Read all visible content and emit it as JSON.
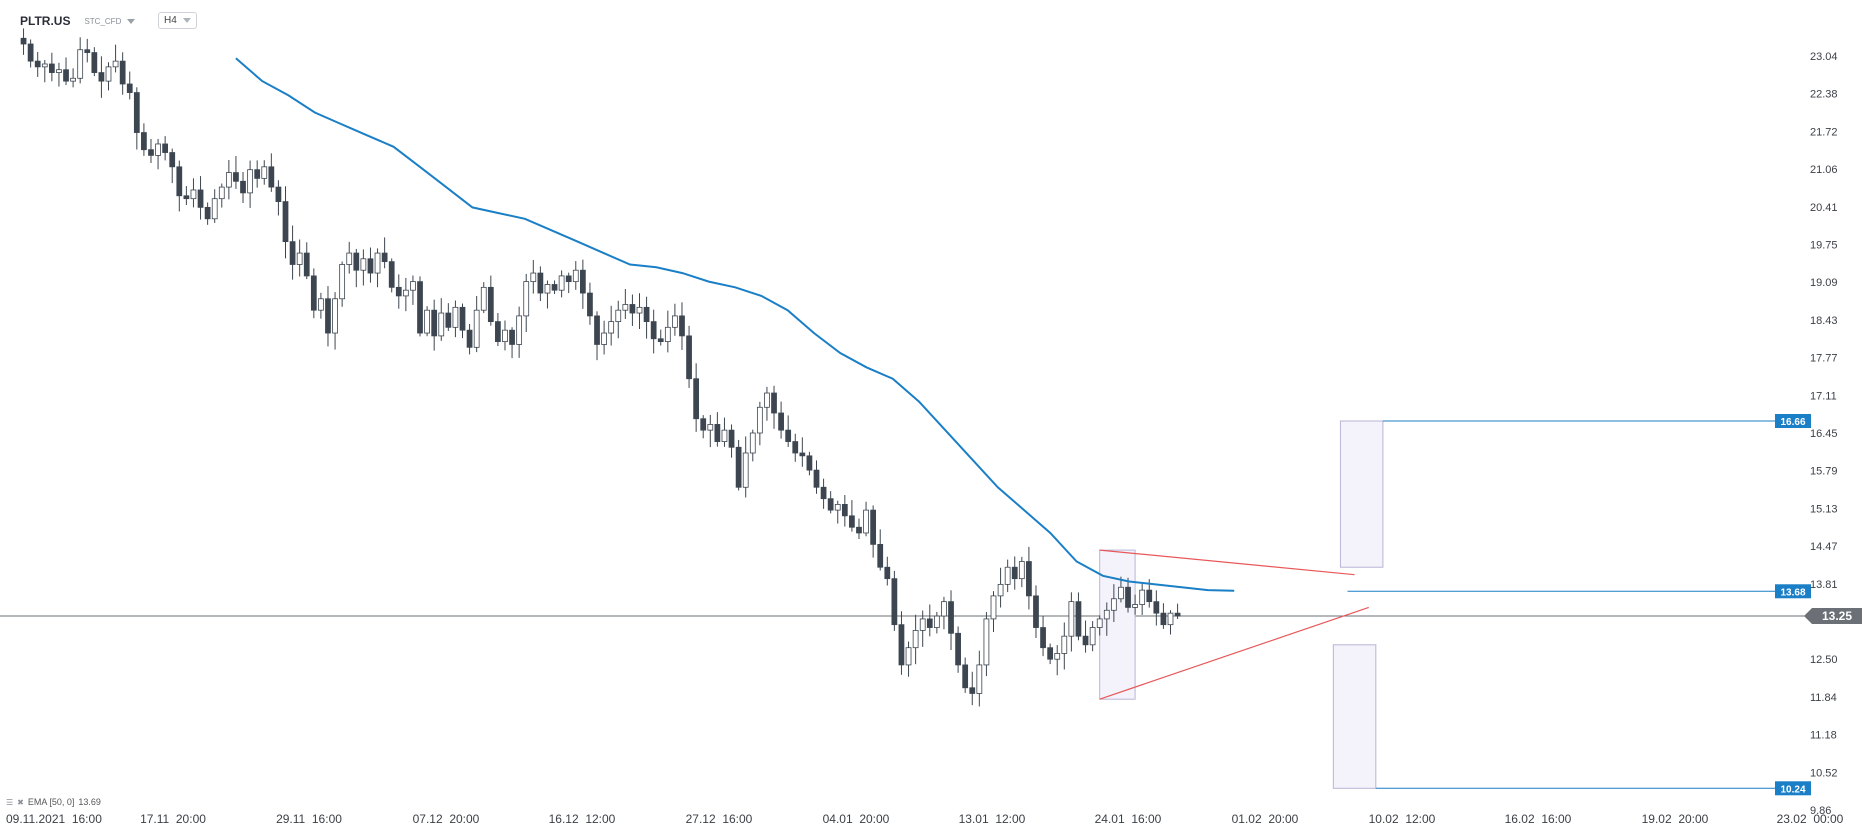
{
  "header": {
    "symbol": "PLTR.US",
    "instrument_type": "STC_CFD",
    "timeframe": "H4"
  },
  "indicator": {
    "legend": "EMA [50, 0]",
    "value": "13.69"
  },
  "colors": {
    "up_candle": "#ffffff",
    "down_candle": "#3d4650",
    "wick": "#3d4650",
    "ema": "#1a7fc6",
    "trendline": "#e8585a",
    "current_price": "#6b7077",
    "level_label": "#1a7fc6",
    "zone_fill": "#f4f3fb",
    "zone_border": "#b9b5d4"
  },
  "chart_data": {
    "type": "candlestick",
    "y_ticks": [
      "23.04",
      "22.38",
      "21.72",
      "21.06",
      "20.41",
      "19.75",
      "19.09",
      "18.43",
      "17.77",
      "17.11",
      "16.45",
      "15.79",
      "15.13",
      "14.47",
      "13.81",
      "12.50",
      "11.84",
      "11.18",
      "10.52",
      "9.86"
    ],
    "ylim": [
      9.86,
      23.4
    ],
    "x_ticks": [
      "09.11.2021  16:00",
      "17.11  20:00",
      "29.11  16:00",
      "07.12  20:00",
      "16.12  12:00",
      "27.12  16:00",
      "04.01  20:00",
      "13.01  12:00",
      "24.01  16:00",
      "01.02  20:00",
      "10.02  12:00",
      "16.02  16:00",
      "19.02  20:00",
      "23.02  00:00"
    ],
    "current_price": {
      "value": 13.25,
      "label": "13.25"
    },
    "levels": [
      {
        "value": 16.66,
        "label": "16.66"
      },
      {
        "value": 13.68,
        "label": "13.68"
      },
      {
        "value": 10.24,
        "label": "10.24"
      }
    ],
    "closes": [
      23.25,
      22.95,
      22.85,
      22.9,
      22.75,
      22.8,
      22.6,
      22.65,
      23.15,
      23.1,
      22.75,
      22.6,
      22.85,
      22.95,
      22.55,
      22.4,
      21.7,
      21.4,
      21.3,
      21.5,
      21.35,
      21.1,
      20.6,
      20.55,
      20.7,
      20.4,
      20.2,
      20.55,
      20.75,
      21.0,
      20.85,
      20.65,
      21.05,
      20.9,
      21.1,
      20.75,
      20.5,
      19.8,
      19.4,
      19.6,
      19.2,
      18.6,
      18.8,
      18.2,
      18.8,
      19.4,
      19.6,
      19.3,
      19.5,
      19.25,
      19.6,
      19.45,
      19.0,
      18.85,
      18.95,
      19.1,
      18.2,
      18.6,
      18.15,
      18.55,
      18.3,
      18.65,
      18.25,
      17.95,
      18.6,
      19.0,
      18.4,
      18.05,
      18.25,
      18.0,
      18.5,
      19.1,
      19.25,
      18.9,
      19.05,
      18.95,
      19.2,
      19.1,
      19.3,
      18.9,
      18.5,
      18.0,
      18.2,
      18.4,
      18.6,
      18.7,
      18.55,
      18.65,
      18.4,
      18.1,
      18.05,
      18.3,
      18.5,
      18.15,
      17.4,
      16.7,
      16.5,
      16.6,
      16.3,
      16.5,
      16.2,
      15.5,
      16.1,
      16.45,
      16.9,
      17.15,
      16.8,
      16.5,
      16.3,
      16.1,
      16.05,
      15.8,
      15.5,
      15.3,
      15.1,
      15.2,
      15.0,
      14.8,
      14.7,
      15.1,
      14.5,
      14.1,
      13.9,
      13.1,
      12.4,
      12.7,
      13.0,
      13.2,
      13.05,
      13.25,
      13.5,
      12.95,
      12.4,
      12.0,
      11.9,
      12.4,
      13.2,
      13.6,
      13.8,
      14.1,
      13.9,
      14.2,
      13.6,
      13.05,
      12.7,
      12.5,
      12.6,
      12.9,
      13.5,
      12.9,
      12.75,
      13.05,
      13.2,
      13.35,
      13.55,
      13.75,
      13.4,
      13.45,
      13.7,
      13.5,
      13.3,
      13.1,
      13.3,
      13.25
    ],
    "ema": [
      23.0,
      22.6,
      22.35,
      22.05,
      21.85,
      21.65,
      21.45,
      21.1,
      20.75,
      20.4,
      20.3,
      20.2,
      20.0,
      19.8,
      19.6,
      19.4,
      19.35,
      19.25,
      19.1,
      19.0,
      18.85,
      18.6,
      18.2,
      17.85,
      17.6,
      17.4,
      17.0,
      16.5,
      16.0,
      15.5,
      15.1,
      14.7,
      14.2,
      13.95,
      13.85,
      13.8,
      13.75,
      13.7,
      13.69
    ],
    "ema_start_index": 30,
    "ema_end_index": 171,
    "trendlines": [
      {
        "from": [
          152,
          14.4
        ],
        "to": [
          188,
          13.97
        ]
      },
      {
        "from": [
          152,
          11.8
        ],
        "to": [
          190,
          13.4
        ]
      }
    ],
    "zones": [
      {
        "from_index": 152,
        "to_index": 157,
        "high": 14.4,
        "low": 11.8
      },
      {
        "from_index": 186,
        "to_index": 192,
        "high": 16.66,
        "low": 14.1
      },
      {
        "from_index": 185,
        "to_index": 191,
        "high": 12.75,
        "low": 10.24
      }
    ],
    "visible_bars": 250,
    "title": "",
    "xlabel": "",
    "ylabel": ""
  }
}
